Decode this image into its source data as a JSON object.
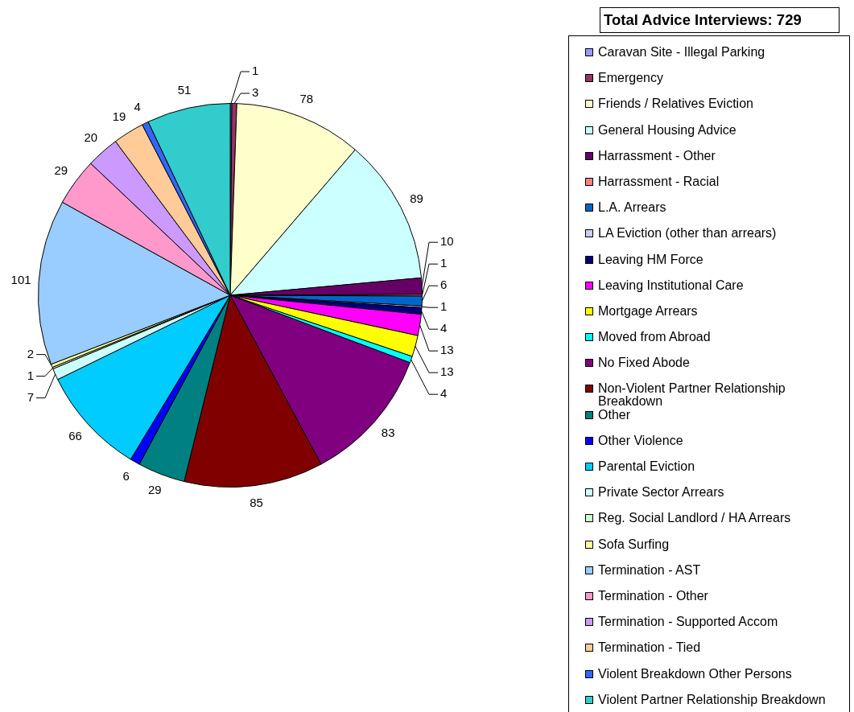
{
  "chart_data": {
    "type": "pie",
    "title": "Total Advice Interviews: 729",
    "categories": [
      "Caravan Site - Illegal Parking",
      "Emergency",
      "Friends / Relatives Eviction",
      "General Housing Advice",
      "Harrassment - Other",
      "Harrassment - Racial",
      "L.A. Arrears",
      "LA Eviction (other than arrears)",
      "Leaving HM Force",
      "Leaving Institutional Care",
      "Mortgage Arrears",
      "Moved from Abroad",
      "No Fixed Abode",
      "Non-Violent Partner Relationship Breakdown",
      "Other",
      "Other Violence",
      "Parental Eviction",
      "Private Sector Arrears",
      "Reg. Social Landlord / HA Arrears",
      "Sofa Surfing",
      "Termination - AST",
      "Termination - Other",
      "Termination - Supported Accom",
      "Termination - Tied",
      "Violent Breakdown Other Persons",
      "Violent Partner Relationship Breakdown"
    ],
    "values": [
      1,
      3,
      78,
      89,
      10,
      1,
      6,
      1,
      4,
      13,
      13,
      4,
      83,
      85,
      29,
      6,
      66,
      7,
      1,
      2,
      101,
      29,
      20,
      19,
      4,
      51
    ],
    "colors": [
      "#9999ff",
      "#993366",
      "#ffffcc",
      "#ccffff",
      "#660066",
      "#ff8080",
      "#0066cc",
      "#ccccff",
      "#000080",
      "#ff00ff",
      "#ffff00",
      "#00ffff",
      "#800080",
      "#800000",
      "#008080",
      "#0000ff",
      "#00ccff",
      "#ccffff",
      "#ccffcc",
      "#ffff99",
      "#99ccff",
      "#ff99cc",
      "#cc99ff",
      "#ffcc99",
      "#3366ff",
      "#33cccc"
    ],
    "legend": "right",
    "data_labels": true
  }
}
